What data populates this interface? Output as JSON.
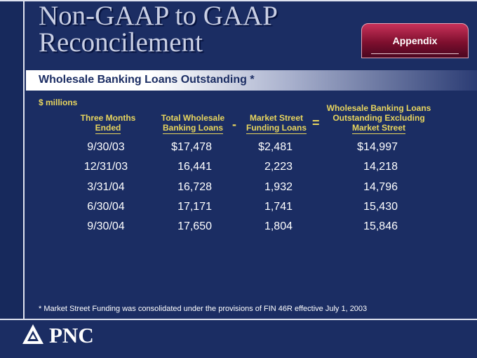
{
  "title_line1": "Non-GAAP to GAAP",
  "title_line2": "Reconcilement",
  "appendix_label": "Appendix",
  "subtitle": "Wholesale Banking Loans Outstanding *",
  "units": "$ millions",
  "columns": {
    "date": [
      "Three Months",
      "Ended"
    ],
    "total": [
      "Total Wholesale",
      "Banking Loans"
    ],
    "market_street": [
      "Market Street",
      "Funding Loans"
    ],
    "excluding": [
      "Wholesale Banking Loans",
      "Outstanding Excluding",
      "Market Street"
    ]
  },
  "minus_sign": "-",
  "equals_sign": "=",
  "rows": [
    {
      "date": "9/30/03",
      "total": "$17,478",
      "market_street": "$2,481",
      "excluding": "$14,997"
    },
    {
      "date": "12/31/03",
      "total": "16,441",
      "market_street": "2,223",
      "excluding": "14,218"
    },
    {
      "date": "3/31/04",
      "total": "16,728",
      "market_street": "1,932",
      "excluding": "14,796"
    },
    {
      "date": "6/30/04",
      "total": "17,171",
      "market_street": "1,741",
      "excluding": "15,430"
    },
    {
      "date": "9/30/04",
      "total": "17,650",
      "market_street": "1,804",
      "excluding": "15,846"
    }
  ],
  "footnote": "* Market Street Funding was consolidated under the provisions of FIN 46R effective July 1, 2003",
  "logo": {
    "icon": "pnc-triangle-icon",
    "text": "PNC"
  },
  "colors": {
    "background": "#1b2d63",
    "accent_yellow": "#e9d65e",
    "appendix_tab": "#9b1c3e"
  }
}
